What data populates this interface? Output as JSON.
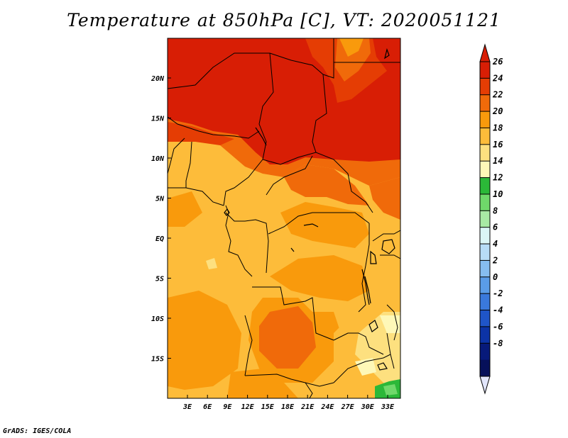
{
  "title": "Temperature at 850hPa [C], VT: 2020051121",
  "footer": "GrADS: IGES/COLA",
  "map": {
    "lat_labels": [
      "20N",
      "15N",
      "10N",
      "5N",
      "EQ",
      "5S",
      "10S",
      "15S"
    ],
    "lon_labels": [
      "3E",
      "6E",
      "9E",
      "12E",
      "15E",
      "18E",
      "21E",
      "24E",
      "27E",
      "30E",
      "33E"
    ]
  },
  "colorbar": {
    "labels": [
      "26",
      "24",
      "22",
      "20",
      "18",
      "16",
      "14",
      "12",
      "10",
      "8",
      "6",
      "4",
      "2",
      "0",
      "-2",
      "-4",
      "-6",
      "-8"
    ],
    "colors": [
      "#d81e05",
      "#e53d04",
      "#f06a0a",
      "#f99a0c",
      "#fdbc3a",
      "#fde07f",
      "#fef8b8",
      "#2bb838",
      "#6fd86a",
      "#a8eaa4",
      "#dbf6f6",
      "#b7dcf6",
      "#86bdf0",
      "#5a9ce8",
      "#3a79dc",
      "#1f55c8",
      "#0c33a6",
      "#071a7a",
      "#06105a"
    ],
    "top_color": "#d81e05",
    "bottom_color": "#e2e6fc"
  }
}
